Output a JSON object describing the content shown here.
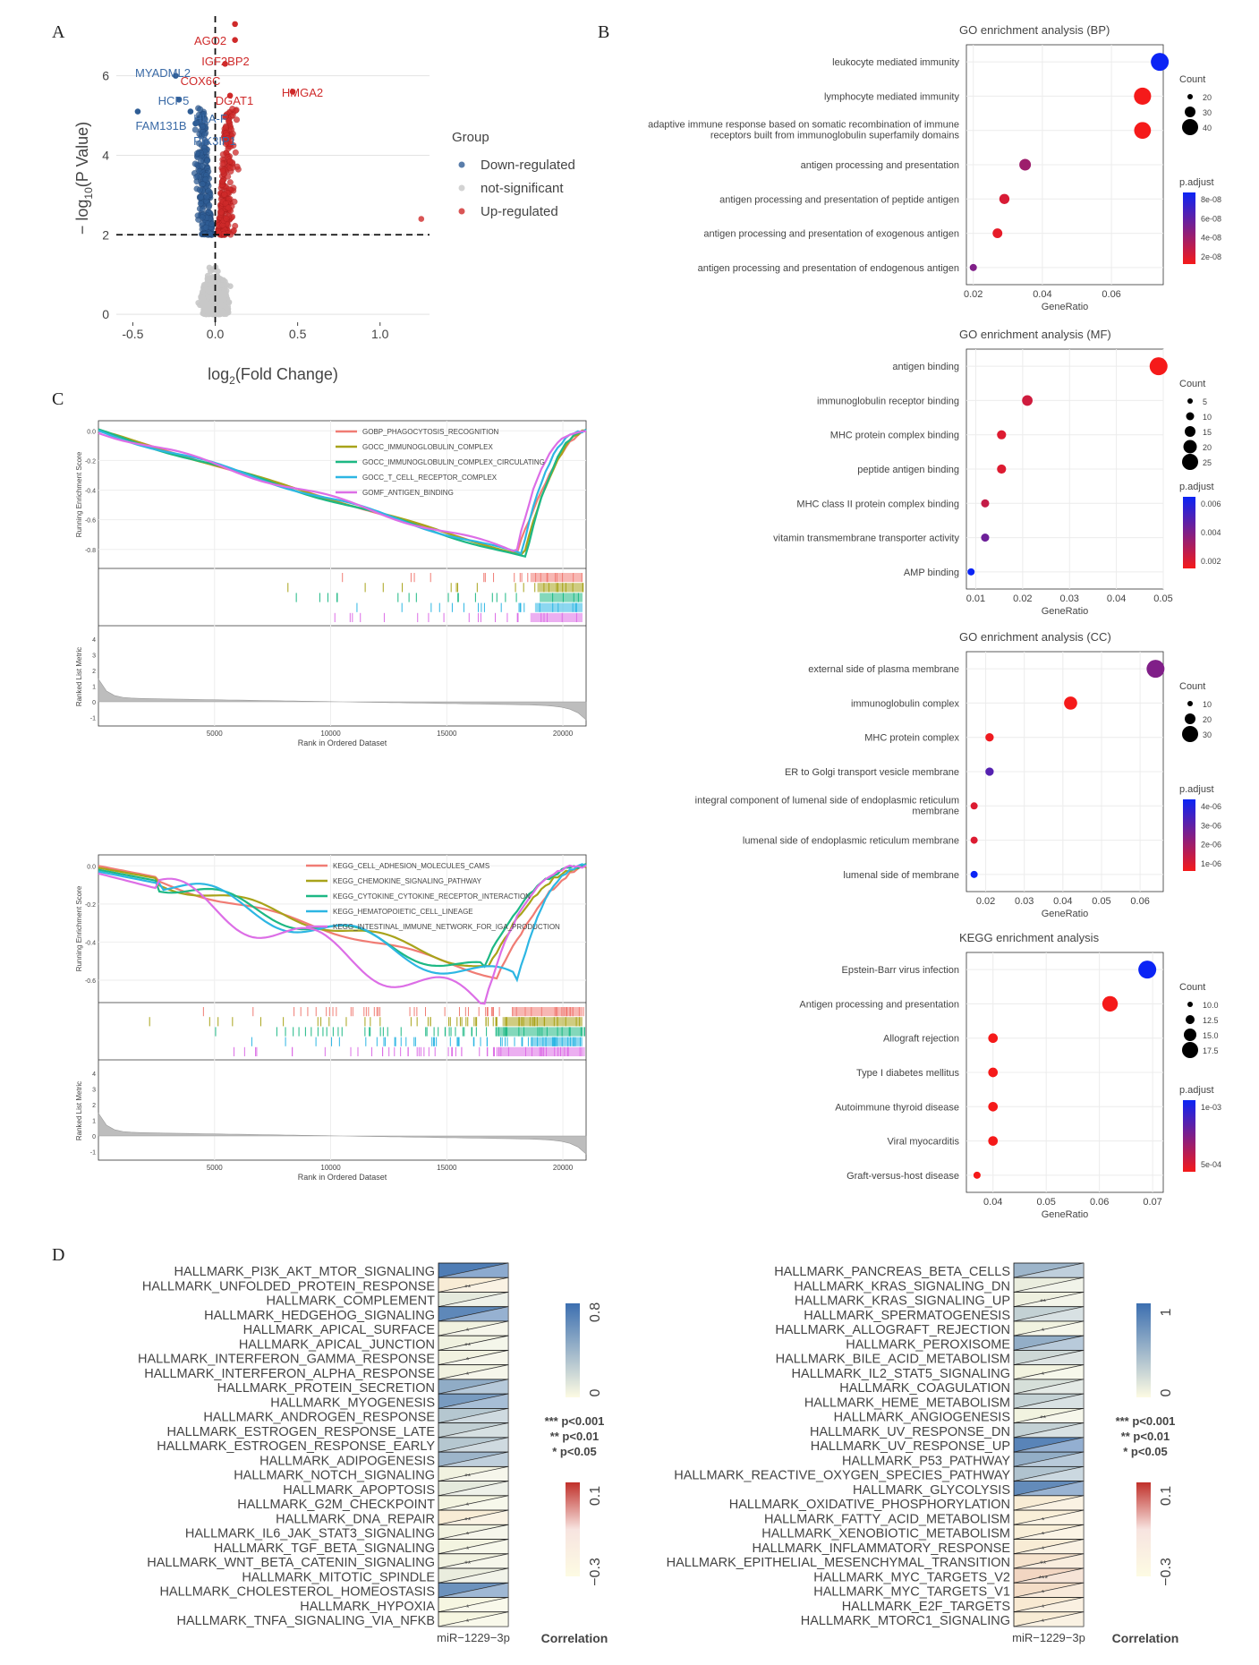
{
  "panels": {
    "a": "A",
    "b": "B",
    "c": "C",
    "d": "D"
  },
  "colors": {
    "up": "#cf2a2a",
    "down": "#2f5d95",
    "ns": "#c8c8c8",
    "dot_high": "#0b24f5",
    "dot_low": "#f51a1a"
  },
  "chart_data": [
    {
      "type": "scatter",
      "panel": "A",
      "xlabel": "log2(Fold Change)",
      "ylabel": "− log10(P Value)",
      "xticks": [
        "-0.5",
        "0.0",
        "0.5",
        "1.0"
      ],
      "yticks": [
        "0",
        "2",
        "4",
        "6"
      ],
      "xlim": [
        -0.6,
        1.3
      ],
      "ylim": [
        -0.2,
        7.5
      ],
      "thresholds": {
        "log2fc": 0,
        "neglog10p": 2
      },
      "legend": {
        "title": "Group",
        "position": "right",
        "items": [
          "Down-regulated",
          "not-significant",
          "Up-regulated"
        ]
      },
      "labeled_points": [
        {
          "label": "AGO2",
          "x": 0.12,
          "y": 7.3,
          "group": "up"
        },
        {
          "label": "IGF2BP2",
          "x": 0.12,
          "y": 6.9,
          "group": "up"
        },
        {
          "label": "COX6C",
          "x": 0.06,
          "y": 6.3,
          "group": "up"
        },
        {
          "label": "DGAT1",
          "x": 0.09,
          "y": 5.5,
          "group": "up"
        },
        {
          "label": "HMGA2",
          "x": 0.47,
          "y": 5.6,
          "group": "up"
        },
        {
          "label": "MYADML2",
          "x": -0.24,
          "y": 6.0,
          "group": "down"
        },
        {
          "label": "HCP5",
          "x": -0.22,
          "y": 5.4,
          "group": "down"
        },
        {
          "label": "HLA-F",
          "x": -0.15,
          "y": 5.1,
          "group": "down"
        },
        {
          "label": "FAM131B",
          "x": -0.47,
          "y": 5.1,
          "group": "down"
        },
        {
          "label": "PIK3IP1",
          "x": -0.12,
          "y": 4.8,
          "group": "down"
        }
      ]
    },
    {
      "type": "scatter",
      "panel": "B",
      "title": "GO enrichment analysis (BP)",
      "xlabel": "GeneRatio",
      "xticks": [
        "0.02",
        "0.04",
        "0.06"
      ],
      "xlim": [
        0.018,
        0.075
      ],
      "size_legend": {
        "title": "Count",
        "items": [
          "20",
          "30",
          "40"
        ]
      },
      "color_legend": {
        "title": "p.adjust",
        "items": [
          "8e-08",
          "6e-08",
          "4e-08",
          "2e-08"
        ]
      },
      "terms": [
        {
          "term": "leukocyte mediated immunity",
          "gene_ratio": 0.074,
          "count": 41,
          "p_adjust": 9e-08
        },
        {
          "term": "lymphocyte mediated immunity",
          "gene_ratio": 0.069,
          "count": 39,
          "p_adjust": 1e-08
        },
        {
          "term": "adaptive immune response based on somatic recombination of immune receptors built from immunoglobulin superfamily domains",
          "gene_ratio": 0.069,
          "count": 38,
          "p_adjust": 1e-08
        },
        {
          "term": "antigen processing and presentation",
          "gene_ratio": 0.035,
          "count": 24,
          "p_adjust": 4e-08
        },
        {
          "term": "antigen processing and presentation of peptide antigen",
          "gene_ratio": 0.029,
          "count": 20,
          "p_adjust": 2e-08
        },
        {
          "term": "antigen processing and presentation of exogenous antigen",
          "gene_ratio": 0.027,
          "count": 19,
          "p_adjust": 1.5e-08
        },
        {
          "term": "antigen processing and presentation of endogenous antigen",
          "gene_ratio": 0.02,
          "count": 12,
          "p_adjust": 5e-08
        }
      ]
    },
    {
      "type": "scatter",
      "panel": "B",
      "title": "GO enrichment analysis (MF)",
      "xlabel": "GeneRatio",
      "xticks": [
        "0.01",
        "0.02",
        "0.03",
        "0.04",
        "0.05"
      ],
      "xlim": [
        0.008,
        0.05
      ],
      "size_legend": {
        "title": "Count",
        "items": [
          "5",
          "10",
          "15",
          "20",
          "25"
        ]
      },
      "color_legend": {
        "title": "p.adjust",
        "items": [
          "0.006",
          "0.004",
          "0.002"
        ]
      },
      "terms": [
        {
          "term": "antigen binding",
          "gene_ratio": 0.049,
          "count": 27,
          "p_adjust": 0.0001
        },
        {
          "term": "immunoglobulin receptor binding",
          "gene_ratio": 0.021,
          "count": 12,
          "p_adjust": 0.0012
        },
        {
          "term": "MHC protein complex binding",
          "gene_ratio": 0.0155,
          "count": 9,
          "p_adjust": 0.0008
        },
        {
          "term": "peptide antigen binding",
          "gene_ratio": 0.0155,
          "count": 9,
          "p_adjust": 0.0008
        },
        {
          "term": "MHC class II protein complex binding",
          "gene_ratio": 0.012,
          "count": 7,
          "p_adjust": 0.0015
        },
        {
          "term": "vitamin transmembrane transporter activity",
          "gene_ratio": 0.012,
          "count": 7,
          "p_adjust": 0.004
        },
        {
          "term": "AMP binding",
          "gene_ratio": 0.009,
          "count": 5,
          "p_adjust": 0.0068
        }
      ]
    },
    {
      "type": "scatter",
      "panel": "B",
      "title": "GO enrichment analysis (CC)",
      "xlabel": "GeneRatio",
      "xticks": [
        "0.02",
        "0.03",
        "0.04",
        "0.05",
        "0.06"
      ],
      "xlim": [
        0.015,
        0.066
      ],
      "size_legend": {
        "title": "Count",
        "items": [
          "10",
          "20",
          "30"
        ]
      },
      "color_legend": {
        "title": "p.adjust",
        "items": [
          "4e-06",
          "3e-06",
          "2e-06",
          "1e-06"
        ]
      },
      "terms": [
        {
          "term": "external side of plasma membrane",
          "gene_ratio": 0.064,
          "count": 36,
          "p_adjust": 2.3e-06
        },
        {
          "term": "immunoglobulin complex",
          "gene_ratio": 0.042,
          "count": 24,
          "p_adjust": 4e-07
        },
        {
          "term": "MHC protein complex",
          "gene_ratio": 0.021,
          "count": 12,
          "p_adjust": 5e-07
        },
        {
          "term": "ER to Golgi transport vesicle membrane",
          "gene_ratio": 0.021,
          "count": 12,
          "p_adjust": 3e-06
        },
        {
          "term": "integral component of lumenal side of endoplasmic reticulum membrane",
          "gene_ratio": 0.017,
          "count": 9,
          "p_adjust": 8e-07
        },
        {
          "term": "lumenal side of endoplasmic reticulum membrane",
          "gene_ratio": 0.017,
          "count": 9,
          "p_adjust": 8e-07
        },
        {
          "term": "lumenal side of membrane",
          "gene_ratio": 0.017,
          "count": 9,
          "p_adjust": 4.2e-06
        }
      ]
    },
    {
      "type": "scatter",
      "panel": "B",
      "title": "KEGG enrichment analysis",
      "xlabel": "GeneRatio",
      "xticks": [
        "0.04",
        "0.05",
        "0.06",
        "0.07"
      ],
      "xlim": [
        0.035,
        0.072
      ],
      "size_legend": {
        "title": "Count",
        "items": [
          "10.0",
          "12.5",
          "15.0",
          "17.5"
        ]
      },
      "color_legend": {
        "title": "p.adjust",
        "items": [
          "1e-03",
          "5e-04"
        ]
      },
      "terms": [
        {
          "term": "Epstein-Barr virus infection",
          "gene_ratio": 0.069,
          "count": 18,
          "p_adjust": 0.0013
        },
        {
          "term": "Antigen processing and presentation",
          "gene_ratio": 0.062,
          "count": 16,
          "p_adjust": 0.0001
        },
        {
          "term": "Allograft rejection",
          "gene_ratio": 0.04,
          "count": 11,
          "p_adjust": 0.0001
        },
        {
          "term": "Type I diabetes mellitus",
          "gene_ratio": 0.04,
          "count": 11,
          "p_adjust": 0.0001
        },
        {
          "term": "Autoimmune thyroid disease",
          "gene_ratio": 0.04,
          "count": 11,
          "p_adjust": 0.0001
        },
        {
          "term": "Viral myocarditis",
          "gene_ratio": 0.04,
          "count": 11,
          "p_adjust": 0.0001
        },
        {
          "term": "Graft-versus-host disease",
          "gene_ratio": 0.037,
          "count": 9,
          "p_adjust": 0.0001
        }
      ]
    },
    {
      "type": "line",
      "panel": "C",
      "ylabel": "Running Enrichment Score",
      "ylabel2": "Ranked List Metric",
      "xlabel": "Rank in Ordered Dataset",
      "xticks": [
        "5000",
        "10000",
        "15000",
        "20000"
      ],
      "yticks": [
        "0.0",
        "-0.2",
        "-0.4",
        "-0.6",
        "-0.8"
      ],
      "yticks2": [
        "4",
        "3",
        "2",
        "1",
        "0",
        "-1"
      ],
      "xlim": [
        0,
        21000
      ],
      "series": [
        {
          "name": "GOBP_PHAGOCYTOSIS_RECOGNITION",
          "color": "#f07c74",
          "min_rank": 18000,
          "min_es": -0.83
        },
        {
          "name": "GOCC_IMMUNOGLOBULIN_COMPLEX",
          "color": "#a8a31a",
          "min_rank": 18300,
          "min_es": -0.84
        },
        {
          "name": "GOCC_IMMUNOGLOBULIN_COMPLEX_CIRCULATING",
          "color": "#1db884",
          "min_rank": 18400,
          "min_es": -0.86
        },
        {
          "name": "GOCC_T_CELL_RECEPTOR_COMPLEX",
          "color": "#2db6e3",
          "min_rank": 18200,
          "min_es": -0.84
        },
        {
          "name": "GOMF_ANTIGEN_BINDING",
          "color": "#dc6ee6",
          "min_rank": 18000,
          "min_es": -0.82
        }
      ]
    },
    {
      "type": "line",
      "panel": "C",
      "ylabel": "Running Enrichment Score",
      "ylabel2": "Ranked List Metric",
      "xlabel": "Rank in Ordered Dataset",
      "xticks": [
        "5000",
        "10000",
        "15000",
        "20000"
      ],
      "yticks": [
        "0.0",
        "-0.2",
        "-0.4",
        "-0.6"
      ],
      "yticks2": [
        "4",
        "3",
        "2",
        "1",
        "0",
        "-1"
      ],
      "xlim": [
        0,
        21000
      ],
      "series": [
        {
          "name": "KEGG_CELL_ADHESION_MOLECULES_CAMS",
          "color": "#f07c74",
          "min_rank": 17200,
          "min_es": -0.58
        },
        {
          "name": "KEGG_CHEMOKINE_SIGNALING_PATHWAY",
          "color": "#a8a31a",
          "min_rank": 16800,
          "min_es": -0.53
        },
        {
          "name": "KEGG_CYTOKINE_CYTOKINE_RECEPTOR_INTERACTION",
          "color": "#1db884",
          "min_rank": 16500,
          "min_es": -0.55
        },
        {
          "name": "KEGG_HEMATOPOIETIC_CELL_LINEAGE",
          "color": "#2db6e3",
          "min_rank": 18000,
          "min_es": -0.62
        },
        {
          "name": "KEGG_INTESTINAL_IMMUNE_NETWORK_FOR_IGA_PRODUCTION",
          "color": "#dc6ee6",
          "min_rank": 16600,
          "min_es": -0.74
        }
      ]
    },
    {
      "type": "heatmap",
      "panel": "D",
      "xlabel": "miR−1229−3p",
      "legend_title": "Correlation",
      "pos_scale": {
        "max": "0.8",
        "min": "0"
      },
      "neg_scale": {
        "max": "0.1",
        "min": "−0.3"
      },
      "significance": [
        "*** p<0.001",
        "** p<0.01",
        "* p<0.05"
      ],
      "rows": [
        {
          "name": "HALLMARK_PI3K_AKT_MTOR_SIGNALING",
          "r": 0.72,
          "sig": ""
        },
        {
          "name": "HALLMARK_UNFOLDED_PROTEIN_RESPONSE",
          "r": -0.05,
          "sig": "**"
        },
        {
          "name": "HALLMARK_COMPLEMENT",
          "r": 0.1,
          "sig": ""
        },
        {
          "name": "HALLMARK_HEDGEHOG_SIGNALING",
          "r": 0.66,
          "sig": ""
        },
        {
          "name": "HALLMARK_APICAL_SURFACE",
          "r": 0.05,
          "sig": "*"
        },
        {
          "name": "HALLMARK_APICAL_JUNCTION",
          "r": 0.06,
          "sig": "**"
        },
        {
          "name": "HALLMARK_INTERFERON_GAMMA_RESPONSE",
          "r": 0.05,
          "sig": "*"
        },
        {
          "name": "HALLMARK_INTERFERON_ALPHA_RESPONSE",
          "r": 0.05,
          "sig": "*"
        },
        {
          "name": "HALLMARK_PROTEIN_SECRETION",
          "r": 0.45,
          "sig": ""
        },
        {
          "name": "HALLMARK_MYOGENESIS",
          "r": 0.55,
          "sig": ""
        },
        {
          "name": "HALLMARK_ANDROGEN_RESPONSE",
          "r": 0.3,
          "sig": ""
        },
        {
          "name": "HALLMARK_ESTROGEN_RESPONSE_LATE",
          "r": 0.25,
          "sig": ""
        },
        {
          "name": "HALLMARK_ESTROGEN_RESPONSE_EARLY",
          "r": 0.3,
          "sig": ""
        },
        {
          "name": "HALLMARK_ADIPOGENESIS",
          "r": 0.4,
          "sig": ""
        },
        {
          "name": "HALLMARK_NOTCH_SIGNALING",
          "r": 0.05,
          "sig": "**"
        },
        {
          "name": "HALLMARK_APOPTOSIS",
          "r": 0.1,
          "sig": ""
        },
        {
          "name": "HALLMARK_G2M_CHECKPOINT",
          "r": 0.04,
          "sig": "*"
        },
        {
          "name": "HALLMARK_DNA_REPAIR",
          "r": -0.05,
          "sig": "**"
        },
        {
          "name": "HALLMARK_IL6_JAK_STAT3_SIGNALING",
          "r": 0.05,
          "sig": "*"
        },
        {
          "name": "HALLMARK_TGF_BETA_SIGNALING",
          "r": 0.04,
          "sig": "*"
        },
        {
          "name": "HALLMARK_WNT_BETA_CATENIN_SIGNALING",
          "r": 0.05,
          "sig": "**"
        },
        {
          "name": "HALLMARK_MITOTIC_SPINDLE",
          "r": 0.08,
          "sig": ""
        },
        {
          "name": "HALLMARK_CHOLESTEROL_HOMEOSTASIS",
          "r": 0.6,
          "sig": ""
        },
        {
          "name": "HALLMARK_HYPOXIA",
          "r": 0.03,
          "sig": "*"
        },
        {
          "name": "HALLMARK_TNFA_SIGNALING_VIA_NFKB",
          "r": 0.03,
          "sig": "*"
        }
      ]
    },
    {
      "type": "heatmap",
      "panel": "D",
      "xlabel": "miR−1229−3p",
      "legend_title": "Correlation",
      "pos_scale": {
        "max": "1",
        "min": "0"
      },
      "neg_scale": {
        "max": "0.1",
        "min": "−0.3"
      },
      "significance": [
        "*** p<0.001",
        "** p<0.01",
        "* p<0.05"
      ],
      "rows": [
        {
          "name": "HALLMARK_PANCREAS_BETA_CELLS",
          "r": 0.5,
          "sig": ""
        },
        {
          "name": "HALLMARK_KRAS_SIGNALING_DN",
          "r": 0.1,
          "sig": ""
        },
        {
          "name": "HALLMARK_KRAS_SIGNALING_UP",
          "r": 0.08,
          "sig": "**"
        },
        {
          "name": "HALLMARK_SPERMATOGENESIS",
          "r": 0.3,
          "sig": ""
        },
        {
          "name": "HALLMARK_ALLOGRAFT_REJECTION",
          "r": 0.06,
          "sig": "*"
        },
        {
          "name": "HALLMARK_PEROXISOME",
          "r": 0.55,
          "sig": ""
        },
        {
          "name": "HALLMARK_BILE_ACID_METABOLISM",
          "r": 0.25,
          "sig": ""
        },
        {
          "name": "HALLMARK_IL2_STAT5_SIGNALING",
          "r": 0.05,
          "sig": "*"
        },
        {
          "name": "HALLMARK_COAGULATION",
          "r": 0.2,
          "sig": ""
        },
        {
          "name": "HALLMARK_HEME_METABOLISM",
          "r": 0.3,
          "sig": ""
        },
        {
          "name": "HALLMARK_ANGIOGENESIS",
          "r": 0.06,
          "sig": "**"
        },
        {
          "name": "HALLMARK_UV_RESPONSE_DN",
          "r": 0.3,
          "sig": ""
        },
        {
          "name": "HALLMARK_UV_RESPONSE_UP",
          "r": 0.85,
          "sig": ""
        },
        {
          "name": "HALLMARK_P53_PATHWAY",
          "r": 0.55,
          "sig": ""
        },
        {
          "name": "HALLMARK_REACTIVE_OXYGEN_SPECIES_PATHWAY",
          "r": 0.4,
          "sig": ""
        },
        {
          "name": "HALLMARK_GLYCOLYSIS",
          "r": 0.8,
          "sig": ""
        },
        {
          "name": "HALLMARK_OXIDATIVE_PHOSPHORYLATION",
          "r": -0.05,
          "sig": ""
        },
        {
          "name": "HALLMARK_FATTY_ACID_METABOLISM",
          "r": -0.04,
          "sig": "*"
        },
        {
          "name": "HALLMARK_XENOBIOTIC_METABOLISM",
          "r": -0.04,
          "sig": "*"
        },
        {
          "name": "HALLMARK_INFLAMMATORY_RESPONSE",
          "r": -0.05,
          "sig": "*"
        },
        {
          "name": "HALLMARK_EPITHELIAL_MESENCHYMAL_TRANSITION",
          "r": -0.08,
          "sig": "**"
        },
        {
          "name": "HALLMARK_MYC_TARGETS_V2",
          "r": -0.12,
          "sig": "***"
        },
        {
          "name": "HALLMARK_MYC_TARGETS_V1",
          "r": -0.1,
          "sig": "*"
        },
        {
          "name": "HALLMARK_E2F_TARGETS",
          "r": -0.06,
          "sig": "*"
        },
        {
          "name": "HALLMARK_MTORC1_SIGNALING",
          "r": -0.05,
          "sig": "*"
        }
      ]
    }
  ]
}
